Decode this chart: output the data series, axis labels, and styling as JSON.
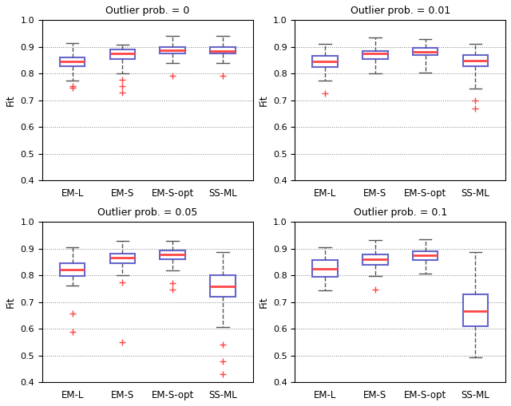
{
  "titles": [
    "Outlier prob. = 0",
    "Outlier prob. = 0.01",
    "Outlier prob. = 0.05",
    "Outlier prob. = 0.1"
  ],
  "categories": [
    "EM-L",
    "EM-S",
    "EM-S-opt",
    "SS-ML"
  ],
  "ylabel": "Fit",
  "ylim": [
    0.4,
    1.0
  ],
  "yticks": [
    0.4,
    0.5,
    0.6,
    0.7,
    0.8,
    0.9,
    1.0
  ],
  "box_color": "#6666cc",
  "median_color": "#ff4444",
  "whisker_color": "#555555",
  "flier_color": "#ff4444",
  "boxes": {
    "plot0": [
      {
        "med": 0.845,
        "q1": 0.828,
        "q3": 0.86,
        "whislo": 0.775,
        "whishi": 0.915,
        "fliers": [
          0.752,
          0.748
        ]
      },
      {
        "med": 0.875,
        "q1": 0.855,
        "q3": 0.89,
        "whislo": 0.8,
        "whishi": 0.908,
        "fliers": [
          0.777,
          0.753,
          0.728
        ]
      },
      {
        "med": 0.888,
        "q1": 0.875,
        "q3": 0.9,
        "whislo": 0.84,
        "whishi": 0.94,
        "fliers": [
          0.792
        ]
      },
      {
        "med": 0.885,
        "q1": 0.875,
        "q3": 0.9,
        "whislo": 0.84,
        "whishi": 0.94,
        "fliers": [
          0.792
        ]
      }
    ],
    "plot1": [
      {
        "med": 0.845,
        "q1": 0.825,
        "q3": 0.865,
        "whislo": 0.775,
        "whishi": 0.91,
        "fliers": [
          0.725
        ]
      },
      {
        "med": 0.875,
        "q1": 0.855,
        "q3": 0.885,
        "whislo": 0.8,
        "whishi": 0.935,
        "fliers": []
      },
      {
        "med": 0.882,
        "q1": 0.87,
        "q3": 0.895,
        "whislo": 0.805,
        "whishi": 0.93,
        "fliers": []
      },
      {
        "med": 0.848,
        "q1": 0.828,
        "q3": 0.868,
        "whislo": 0.745,
        "whishi": 0.91,
        "fliers": [
          0.7,
          0.67
        ]
      }
    ],
    "plot2": [
      {
        "med": 0.823,
        "q1": 0.798,
        "q3": 0.845,
        "whislo": 0.762,
        "whishi": 0.905,
        "fliers": [
          0.658,
          0.59
        ]
      },
      {
        "med": 0.868,
        "q1": 0.845,
        "q3": 0.882,
        "whislo": 0.802,
        "whishi": 0.93,
        "fliers": [
          0.775,
          0.55
        ]
      },
      {
        "med": 0.878,
        "q1": 0.86,
        "q3": 0.895,
        "whislo": 0.82,
        "whishi": 0.93,
        "fliers": [
          0.772,
          0.748
        ]
      },
      {
        "med": 0.758,
        "q1": 0.72,
        "q3": 0.802,
        "whislo": 0.608,
        "whishi": 0.888,
        "fliers": [
          0.542,
          0.48,
          0.43
        ]
      }
    ],
    "plot3": [
      {
        "med": 0.825,
        "q1": 0.795,
        "q3": 0.858,
        "whislo": 0.745,
        "whishi": 0.905,
        "fliers": []
      },
      {
        "med": 0.862,
        "q1": 0.84,
        "q3": 0.88,
        "whislo": 0.798,
        "whishi": 0.932,
        "fliers": [
          0.748
        ]
      },
      {
        "med": 0.875,
        "q1": 0.858,
        "q3": 0.892,
        "whislo": 0.808,
        "whishi": 0.935,
        "fliers": []
      },
      {
        "med": 0.668,
        "q1": 0.61,
        "q3": 0.73,
        "whislo": 0.495,
        "whishi": 0.888,
        "fliers": []
      }
    ]
  }
}
